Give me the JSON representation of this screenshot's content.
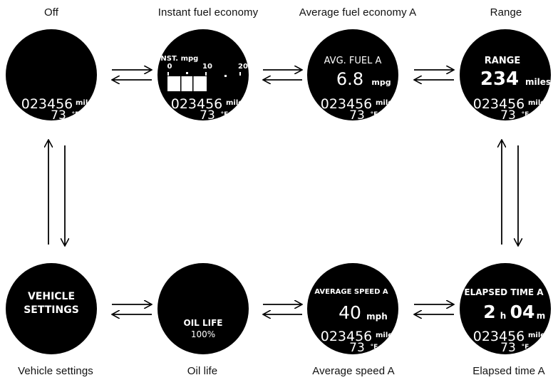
{
  "captions": {
    "off": "Off",
    "instant": "Instant fuel economy",
    "avg_fuel": "Average fuel economy A",
    "range": "Range",
    "vehicle": "Vehicle settings",
    "oil": "Oil life",
    "avg_speed": "Average speed A",
    "elapsed": "Elapsed time A"
  },
  "common": {
    "odometer": "023456",
    "odometer_unit": "miles",
    "temperature": "73",
    "temperature_unit": "°F"
  },
  "instant": {
    "label": "INST. mpg",
    "scale": [
      "0",
      "10",
      "20"
    ]
  },
  "avg_fuel": {
    "label": "AVG. FUEL A",
    "value": "6.8",
    "unit": "mpg"
  },
  "range": {
    "label": "RANGE",
    "value": "234",
    "unit": "miles"
  },
  "vehicle": {
    "line1": "VEHICLE",
    "line2": "SETTINGS"
  },
  "oil": {
    "label": "OIL LIFE",
    "value": "100%"
  },
  "avg_speed": {
    "label": "AVERAGE SPEED A",
    "value": "40",
    "unit": "mph"
  },
  "elapsed": {
    "label": "ELAPSED TIME A",
    "hours": "2",
    "hours_unit": "h",
    "minutes": "04",
    "minutes_unit": "m"
  }
}
